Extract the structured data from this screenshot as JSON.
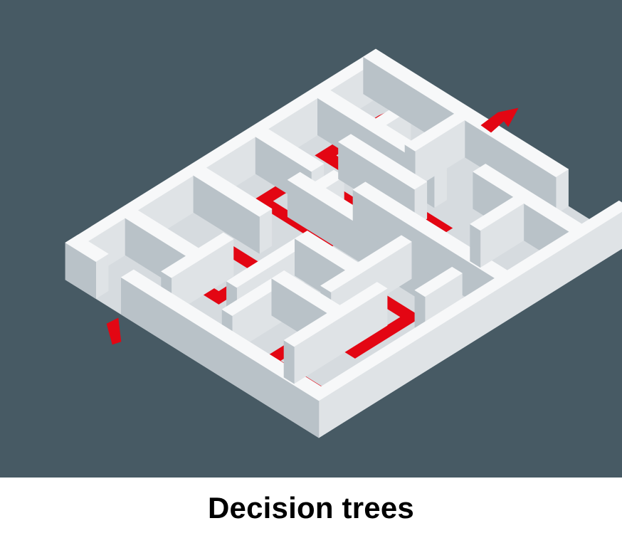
{
  "caption": {
    "text": "Decision trees"
  },
  "illustration": {
    "subject": "isometric-maze-with-red-path",
    "colors": {
      "background": "#475a64",
      "wall_top": "#f7f8f9",
      "wall_left": "#dfe3e6",
      "wall_right": "#b9c2c8",
      "floor": "#d6dbdf",
      "path": "#e30613"
    }
  }
}
